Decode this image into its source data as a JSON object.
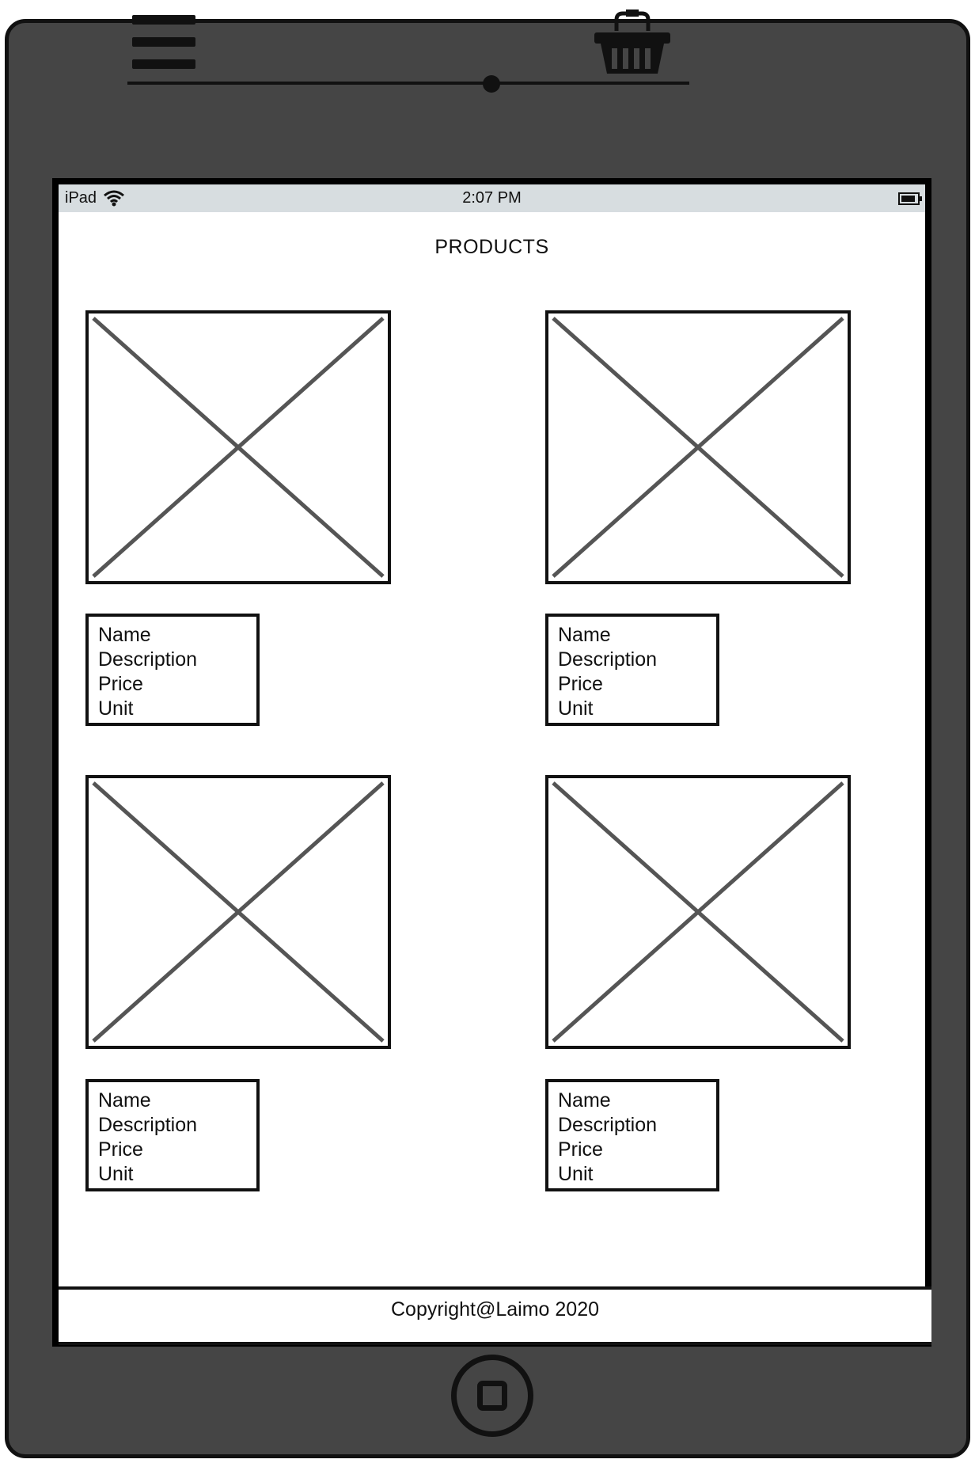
{
  "statusbar": {
    "device": "iPad",
    "time": "2:07 PM"
  },
  "header": {
    "menu_icon": "hamburger-menu-icon",
    "cart_icon": "shopping-basket-icon"
  },
  "page": {
    "title": "PRODUCTS"
  },
  "products": [
    {
      "name": "Name",
      "description": "Description",
      "price": "Price",
      "unit": "Unit"
    },
    {
      "name": "Name",
      "description": "Description",
      "price": "Price",
      "unit": "Unit"
    },
    {
      "name": "Name",
      "description": "Description",
      "price": "Price",
      "unit": "Unit"
    },
    {
      "name": "Name",
      "description": "Description",
      "price": "Price",
      "unit": "Unit"
    }
  ],
  "footer": {
    "text": "Copyright@Laimo 2020"
  },
  "colors": {
    "frame": "#454545",
    "statusbar": "#d7dde0",
    "outline": "#111111",
    "placeholder_cross": "#555555"
  }
}
